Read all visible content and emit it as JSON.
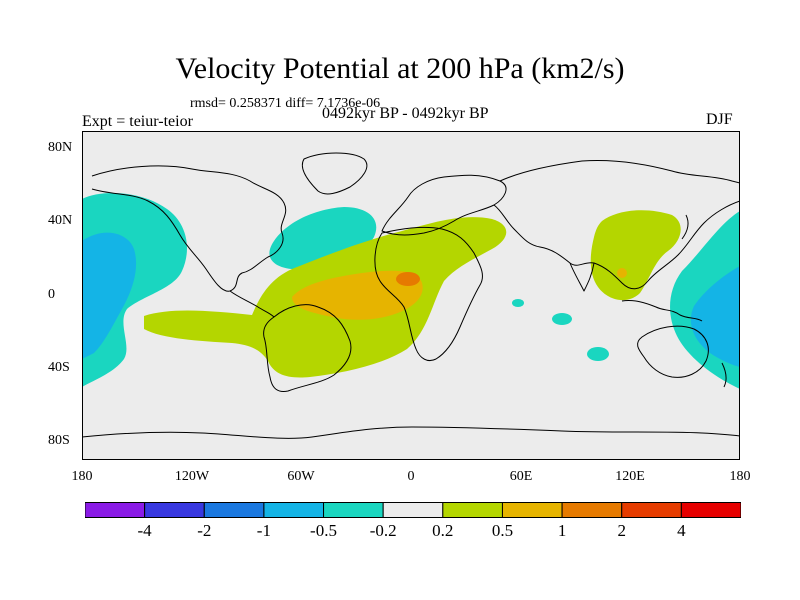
{
  "title": "Velocity Potential at 200 hPa (km2/s)",
  "stats": "rmsd= 0.258371 diff= 7.1736e-06",
  "expt": "Expt = teiur-teior",
  "period": "0492kyr BP - 0492kyr BP",
  "season": "DJF",
  "lat_labels": [
    "80N",
    "40N",
    "0",
    "40S",
    "80S"
  ],
  "lon_labels": [
    "180",
    "120W",
    "60W",
    "0",
    "60E",
    "120E",
    "180"
  ],
  "colorbar": {
    "colors": [
      "#8a1ae6",
      "#3838e0",
      "#1a78e0",
      "#14b4e6",
      "#1ad6c0",
      "#ececec",
      "#b4d600",
      "#e6b400",
      "#e67a00",
      "#e63c00",
      "#e60000"
    ],
    "labels": [
      "-4",
      "-2",
      "-1",
      "-0.5",
      "-0.2",
      "0.2",
      "0.5",
      "1",
      "2",
      "4"
    ]
  },
  "field_colors": {
    "background": "#ececec",
    "negative_weak": "#1ad6c0",
    "negative_mid": "#14b4e6",
    "positive_weak": "#b4d600",
    "positive_mid": "#e6b400",
    "positive_strong": "#e67a00"
  }
}
